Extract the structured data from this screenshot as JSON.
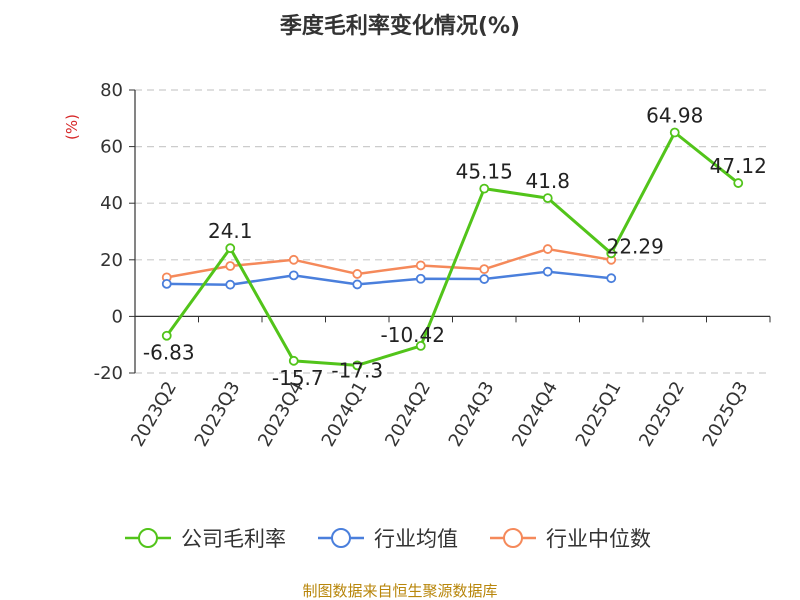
{
  "chart_data": {
    "type": "line",
    "title": "季度毛利率变化情况(%)",
    "ylabel": "(%)",
    "xlabel": "",
    "ylim": [
      -20,
      80
    ],
    "yticks": [
      -20,
      0,
      20,
      40,
      60,
      80
    ],
    "grid": true,
    "legend_position": "bottom",
    "categories": [
      "2023Q2",
      "2023Q3",
      "2023Q4",
      "2024Q1",
      "2024Q2",
      "2024Q3",
      "2024Q4",
      "2025Q1",
      "2025Q2",
      "2025Q3"
    ],
    "series": [
      {
        "name": "公司毛利率",
        "color": "#52c41a",
        "values": [
          -6.83,
          24.1,
          -15.7,
          -17.3,
          -10.42,
          45.15,
          41.8,
          22.29,
          64.98,
          47.12
        ],
        "labels": [
          "-6.83",
          "24.1",
          "-15.7",
          "-17.3",
          "-10.42",
          "45.15",
          "41.8",
          "22.29",
          "64.98",
          "47.12"
        ]
      },
      {
        "name": "行业均值",
        "color": "#4a7fdc",
        "values": [
          11.5,
          11.2,
          14.5,
          11.3,
          13.3,
          13.2,
          15.8,
          13.5,
          null,
          null
        ]
      },
      {
        "name": "行业中位数",
        "color": "#f5895a",
        "values": [
          13.8,
          17.8,
          20.0,
          15.0,
          18.0,
          16.7,
          23.8,
          20.0,
          null,
          null
        ]
      }
    ],
    "source": "制图数据来自恒生聚源数据库"
  }
}
